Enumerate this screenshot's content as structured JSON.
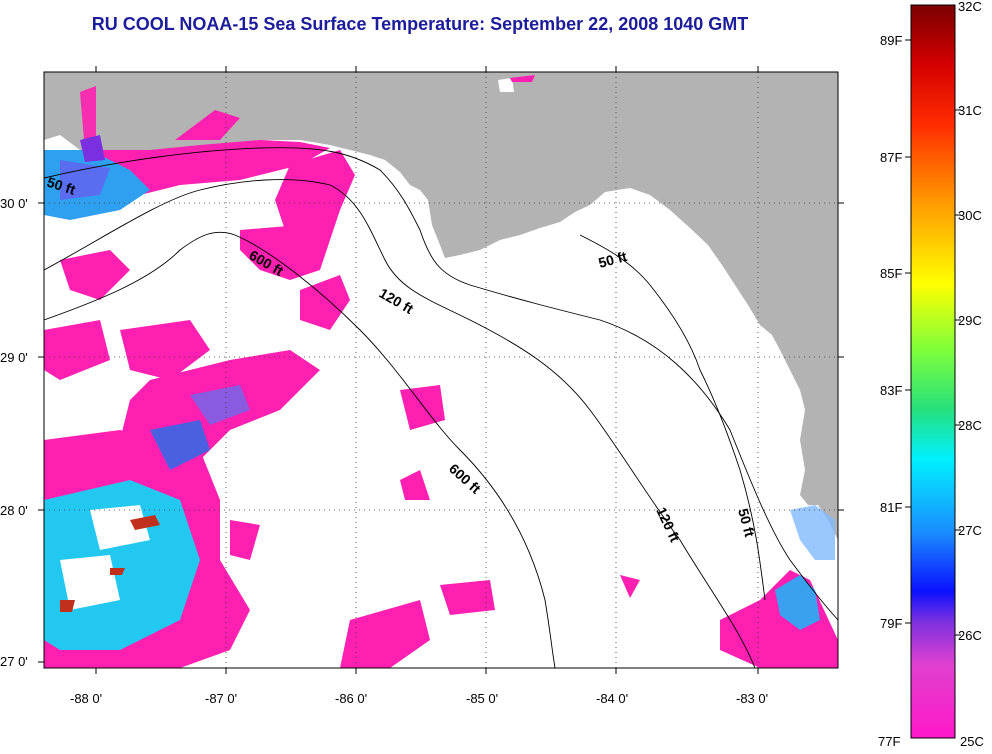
{
  "title": "RU COOL  NOAA-15  Sea Surface Temperature:  September 22, 2008 1040 GMT",
  "map": {
    "lat_ticks": [
      "30 0'",
      "29 0'",
      "28 0'",
      "27 0'"
    ],
    "lon_ticks": [
      "-88 0'",
      "-87 0'",
      "-86 0'",
      "-85 0'",
      "-84 0'",
      "-83 0'"
    ],
    "contours": [
      "50 ft",
      "600 ft",
      "120 ft",
      "50 ft",
      "600 ft",
      "120 ft",
      "50 ft"
    ],
    "land_color": "#b3b3b3",
    "cloud_color": "#ffffff"
  },
  "colorbar": {
    "celsius": [
      "32C",
      "31C",
      "30C",
      "29C",
      "28C",
      "27C",
      "26C",
      "25C"
    ],
    "fahrenheit": [
      "89F",
      "87F",
      "85F",
      "83F",
      "81F",
      "79F",
      "77F"
    ]
  }
}
